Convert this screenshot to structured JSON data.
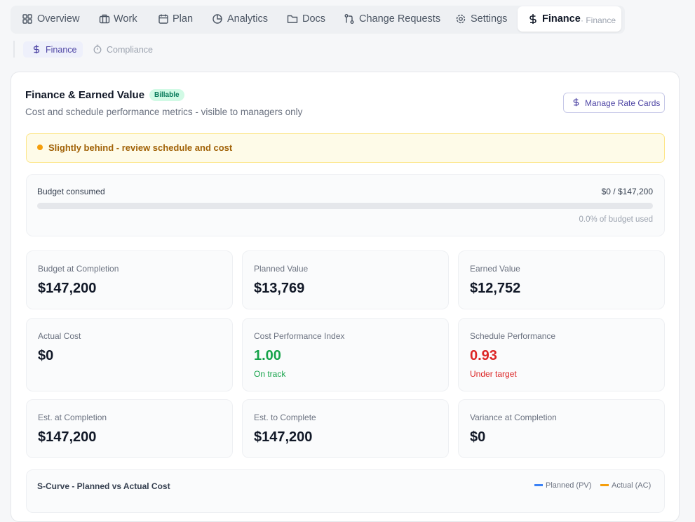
{
  "tabs": [
    "Overview",
    "Work",
    "Plan",
    "Analytics",
    "Docs",
    "Change Requests",
    "Settings"
  ],
  "active_tab": {
    "label": "Finance",
    "context": "· Finance"
  },
  "subtabs": [
    "Finance",
    "Compliance"
  ],
  "panel": {
    "title": "Finance & Earned Value",
    "badge": "Billable",
    "subtitle": "Cost and schedule performance metrics - visible to managers only",
    "button": "Manage Rate Cards",
    "alert": "Slightly behind - review schedule and cost",
    "budget": {
      "label": "Budget consumed",
      "amount": "$0 / $147,200",
      "note": "0.0% of budget used"
    },
    "metrics": [
      {
        "label": "Budget at Completion",
        "value": "$147,200"
      },
      {
        "label": "Planned Value",
        "value": "$13,769"
      },
      {
        "label": "Earned Value",
        "value": "$12,752"
      },
      {
        "label": "Actual Cost",
        "value": "$0"
      },
      {
        "label": "Cost Performance Index",
        "value": "1.00",
        "status": "On track"
      },
      {
        "label": "Schedule Performance",
        "value": "0.93",
        "status": "Under target"
      },
      {
        "label": "Est. at Completion",
        "value": "$147,200"
      },
      {
        "label": "Est. to Complete",
        "value": "$147,200"
      },
      {
        "label": "Variance at Completion",
        "value": "$0"
      }
    ],
    "chart": {
      "title": "S-Curve - Planned vs Actual Cost",
      "legend": [
        "Planned (PV)",
        "Actual (AC)"
      ]
    }
  }
}
